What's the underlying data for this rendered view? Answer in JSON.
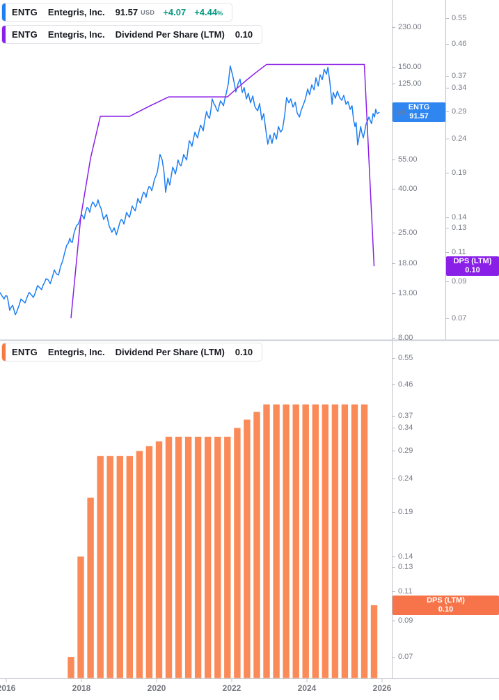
{
  "colors": {
    "price_line": "#1E7FF2",
    "price_badge": "#2F86F0",
    "dividend_line": "#8A1FE8",
    "dividend_badge": "#8A1FE8",
    "bars": "#FA8A58",
    "bar_badge": "#F7744A",
    "legend_marker_orange": "#F7793F",
    "change_green": "#089981",
    "label_gray": "#787B86",
    "text_dark": "#17191F",
    "axis_line": "#BDC0C7",
    "separator_line": "#CBCED4"
  },
  "top_panel": {
    "legend_price": {
      "ticker": "ENTG",
      "name": "Entegris, Inc.",
      "price": "91.57",
      "currency": "USD",
      "change_abs": "+4.07",
      "change_pct": "+4.44",
      "percent_sign": "%"
    },
    "legend_dividend": {
      "ticker": "ENTG",
      "name": "Entegris, Inc.",
      "series_title": "Dividend Per Share (LTM)",
      "value": "0.10"
    },
    "price_scale_ticks": [
      "230.00",
      "150.00",
      "125.00",
      "55.00",
      "40.00",
      "25.00",
      "18.00",
      "13.00",
      "8.00"
    ],
    "price_scale_partial_label": "90",
    "price_badge": {
      "line1": "ENTG",
      "line2": "91.57"
    },
    "dividend_scale_ticks": [
      "0.55",
      "0.46",
      "0.37",
      "0.34",
      "0.29",
      "0.24",
      "0.19",
      "0.14",
      "0.13",
      "0.11",
      "0.09",
      "0.07"
    ],
    "dividend_badge": {
      "line1": "DPS (LTM)",
      "line2": "0.10"
    }
  },
  "bottom_panel": {
    "legend": {
      "ticker": "ENTG",
      "name": "Entegris, Inc.",
      "series_title": "Dividend Per Share (LTM)",
      "value": "0.10"
    },
    "scale_ticks": [
      "0.55",
      "0.46",
      "0.37",
      "0.34",
      "0.29",
      "0.24",
      "0.19",
      "0.14",
      "0.13",
      "0.11",
      "0.09",
      "0.07"
    ],
    "badge": {
      "line1": "DPS (LTM)",
      "line2": "0.10"
    }
  },
  "x_axis": {
    "labels": [
      "2016",
      "2018",
      "2020",
      "2022",
      "2024",
      "2026"
    ]
  },
  "chart_data": [
    {
      "type": "line",
      "name": "ENTG share price",
      "unit": "USD",
      "scale": "log",
      "axis": "right-price",
      "ylim": [
        8,
        230
      ],
      "last_value": 91.57,
      "points": [
        [
          2015.83,
          13.1
        ],
        [
          2015.94,
          12.2
        ],
        [
          2016.02,
          12.6
        ],
        [
          2016.09,
          10.8
        ],
        [
          2016.17,
          11.4
        ],
        [
          2016.24,
          10.3
        ],
        [
          2016.31,
          11.0
        ],
        [
          2016.39,
          12.2
        ],
        [
          2016.5,
          11.7
        ],
        [
          2016.61,
          13.1
        ],
        [
          2016.72,
          12.4
        ],
        [
          2016.83,
          14.1
        ],
        [
          2016.94,
          13.5
        ],
        [
          2017.06,
          15.2
        ],
        [
          2017.17,
          14.4
        ],
        [
          2017.28,
          16.7
        ],
        [
          2017.39,
          15.8
        ],
        [
          2017.5,
          18.4
        ],
        [
          2017.61,
          21.8
        ],
        [
          2017.69,
          23.5
        ],
        [
          2017.76,
          22.5
        ],
        [
          2017.83,
          25.7
        ],
        [
          2017.91,
          27.3
        ],
        [
          2018.0,
          30.4
        ],
        [
          2018.07,
          28.9
        ],
        [
          2018.15,
          32.8
        ],
        [
          2018.22,
          31.1
        ],
        [
          2018.3,
          34.8
        ],
        [
          2018.37,
          33.0
        ],
        [
          2018.44,
          35.6
        ],
        [
          2018.52,
          32.5
        ],
        [
          2018.59,
          28.8
        ],
        [
          2018.67,
          30.4
        ],
        [
          2018.74,
          26.7
        ],
        [
          2018.81,
          25.1
        ],
        [
          2018.87,
          26.3
        ],
        [
          2018.93,
          24.4
        ],
        [
          2018.98,
          26.1
        ],
        [
          2019.06,
          28.8
        ],
        [
          2019.13,
          27.4
        ],
        [
          2019.2,
          31.1
        ],
        [
          2019.28,
          29.5
        ],
        [
          2019.35,
          33.3
        ],
        [
          2019.43,
          31.6
        ],
        [
          2019.5,
          36.1
        ],
        [
          2019.57,
          34.3
        ],
        [
          2019.65,
          38.6
        ],
        [
          2019.72,
          36.6
        ],
        [
          2019.8,
          41.1
        ],
        [
          2019.87,
          39.3
        ],
        [
          2019.94,
          44.3
        ],
        [
          2020.02,
          48.1
        ],
        [
          2020.09,
          58.1
        ],
        [
          2020.15,
          54.7
        ],
        [
          2020.2,
          47.7
        ],
        [
          2020.24,
          38.6
        ],
        [
          2020.3,
          45.0
        ],
        [
          2020.35,
          41.7
        ],
        [
          2020.43,
          50.6
        ],
        [
          2020.5,
          47.0
        ],
        [
          2020.57,
          54.7
        ],
        [
          2020.65,
          51.4
        ],
        [
          2020.72,
          58.1
        ],
        [
          2020.8,
          54.7
        ],
        [
          2020.87,
          67.4
        ],
        [
          2020.94,
          63.4
        ],
        [
          2021.02,
          73.9
        ],
        [
          2021.09,
          69.5
        ],
        [
          2021.17,
          79.7
        ],
        [
          2021.24,
          75.0
        ],
        [
          2021.33,
          92.4
        ],
        [
          2021.41,
          85.7
        ],
        [
          2021.48,
          105.8
        ],
        [
          2021.56,
          98.3
        ],
        [
          2021.63,
          92.4
        ],
        [
          2021.7,
          103.5
        ],
        [
          2021.78,
          98.3
        ],
        [
          2021.85,
          111.6
        ],
        [
          2021.91,
          125.1
        ],
        [
          2021.96,
          151.1
        ],
        [
          2022.02,
          137.2
        ],
        [
          2022.06,
          127.2
        ],
        [
          2022.11,
          114.2
        ],
        [
          2022.17,
          125.1
        ],
        [
          2022.22,
          131.0
        ],
        [
          2022.28,
          113.4
        ],
        [
          2022.33,
          119.5
        ],
        [
          2022.39,
          105.8
        ],
        [
          2022.44,
          112.5
        ],
        [
          2022.5,
          101.4
        ],
        [
          2022.56,
          109.2
        ],
        [
          2022.61,
          98.3
        ],
        [
          2022.69,
          93.1
        ],
        [
          2022.74,
          100.6
        ],
        [
          2022.8,
          84.4
        ],
        [
          2022.85,
          90.3
        ],
        [
          2022.91,
          75.0
        ],
        [
          2022.96,
          64.9
        ],
        [
          2023.02,
          71.6
        ],
        [
          2023.07,
          65.4
        ],
        [
          2023.13,
          73.3
        ],
        [
          2023.19,
          68.5
        ],
        [
          2023.24,
          78.5
        ],
        [
          2023.3,
          73.9
        ],
        [
          2023.35,
          76.1
        ],
        [
          2023.41,
          89.0
        ],
        [
          2023.46,
          107.4
        ],
        [
          2023.52,
          101.4
        ],
        [
          2023.57,
          105.8
        ],
        [
          2023.63,
          96.8
        ],
        [
          2023.69,
          102.1
        ],
        [
          2023.74,
          91.0
        ],
        [
          2023.8,
          87.0
        ],
        [
          2023.85,
          93.8
        ],
        [
          2023.91,
          99.8
        ],
        [
          2023.96,
          105.8
        ],
        [
          2024.02,
          117.7
        ],
        [
          2024.07,
          110.8
        ],
        [
          2024.13,
          123.2
        ],
        [
          2024.19,
          116.8
        ],
        [
          2024.24,
          132.9
        ],
        [
          2024.3,
          121.4
        ],
        [
          2024.35,
          137.2
        ],
        [
          2024.41,
          130.1
        ],
        [
          2024.46,
          145.7
        ],
        [
          2024.52,
          138.2
        ],
        [
          2024.56,
          149.0
        ],
        [
          2024.61,
          127.2
        ],
        [
          2024.67,
          99.8
        ],
        [
          2024.7,
          113.4
        ],
        [
          2024.76,
          106.6
        ],
        [
          2024.81,
          115.1
        ],
        [
          2024.87,
          107.4
        ],
        [
          2024.93,
          104.2
        ],
        [
          2024.98,
          110.0
        ],
        [
          2025.04,
          99.8
        ],
        [
          2025.09,
          102.9
        ],
        [
          2025.15,
          94.5
        ],
        [
          2025.2,
          98.3
        ],
        [
          2025.24,
          84.4
        ],
        [
          2025.28,
          78.5
        ],
        [
          2025.31,
          82.1
        ],
        [
          2025.35,
          64.4
        ],
        [
          2025.39,
          70.5
        ],
        [
          2025.43,
          78.5
        ],
        [
          2025.46,
          73.9
        ],
        [
          2025.5,
          69.5
        ],
        [
          2025.54,
          75.0
        ],
        [
          2025.57,
          80.3
        ],
        [
          2025.61,
          83.3
        ],
        [
          2025.65,
          87.0
        ],
        [
          2025.69,
          83.3
        ],
        [
          2025.72,
          81.0
        ],
        [
          2025.76,
          90.3
        ],
        [
          2025.8,
          87.0
        ],
        [
          2025.83,
          94.5
        ],
        [
          2025.87,
          90.3
        ],
        [
          2025.93,
          91.57
        ]
      ]
    },
    {
      "type": "bar",
      "name": "Dividend Per Share (LTM)",
      "unit": "USD",
      "scale": "log",
      "ylim": [
        0.062,
        0.62
      ],
      "last_value": 0.1,
      "shown_as": [
        "purple line in top panel",
        "orange bars in bottom panel"
      ],
      "categories": [
        "2017-Q4",
        "2018-Q1",
        "2018-Q2",
        "2018-Q3",
        "2018-Q4",
        "2019-Q1",
        "2019-Q2",
        "2019-Q3",
        "2019-Q4",
        "2020-Q1",
        "2020-Q2",
        "2020-Q3",
        "2020-Q4",
        "2021-Q1",
        "2021-Q2",
        "2021-Q3",
        "2021-Q4",
        "2022-Q1",
        "2022-Q2",
        "2022-Q3",
        "2022-Q4",
        "2023-Q1",
        "2023-Q2",
        "2023-Q3",
        "2023-Q4",
        "2024-Q1",
        "2024-Q2",
        "2024-Q3",
        "2024-Q4",
        "2025-Q1",
        "2025-Q2",
        "2025-Q3"
      ],
      "values": [
        0.07,
        0.14,
        0.21,
        0.28,
        0.28,
        0.28,
        0.28,
        0.29,
        0.3,
        0.31,
        0.32,
        0.32,
        0.32,
        0.32,
        0.32,
        0.32,
        0.32,
        0.34,
        0.36,
        0.38,
        0.4,
        0.4,
        0.4,
        0.4,
        0.4,
        0.4,
        0.4,
        0.4,
        0.4,
        0.4,
        0.4,
        0.1
      ]
    }
  ]
}
